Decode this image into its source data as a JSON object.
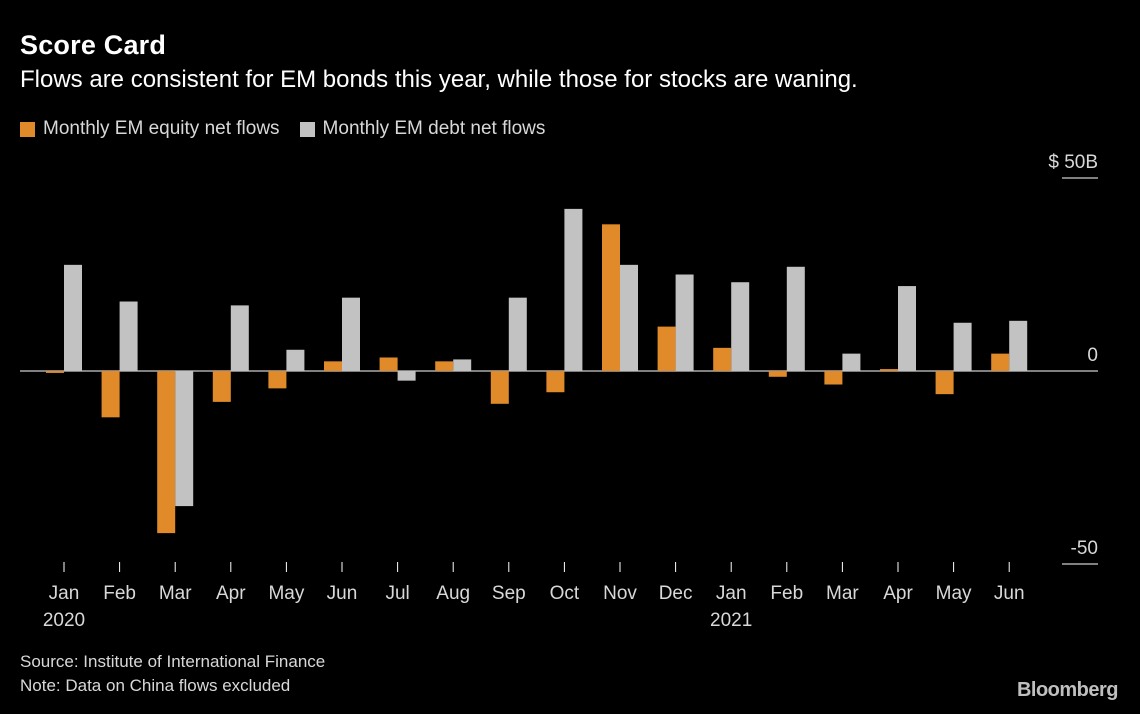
{
  "header": {
    "title": "Score Card",
    "subtitle": "Flows are consistent for EM bonds this year, while those for stocks are waning."
  },
  "legend": {
    "items": [
      {
        "label": "Monthly EM equity net flows",
        "color": "#E08A2A"
      },
      {
        "label": "Monthly EM debt net flows",
        "color": "#C2C2C2"
      }
    ]
  },
  "footer": {
    "source": "Source: Institute of International Finance",
    "note": "Note: Data on China flows excluded",
    "brand": "Bloomberg"
  },
  "chart_data": {
    "type": "bar",
    "title": "Score Card",
    "subtitle": "Flows are consistent for EM bonds this year, while those for stocks are waning.",
    "categories": [
      "Jan",
      "Feb",
      "Mar",
      "Apr",
      "May",
      "Jun",
      "Jul",
      "Aug",
      "Sep",
      "Oct",
      "Nov",
      "Dec",
      "Jan",
      "Feb",
      "Mar",
      "Apr",
      "May",
      "Jun"
    ],
    "year_labels": [
      {
        "index": 0,
        "label": "2020"
      },
      {
        "index": 12,
        "label": "2021"
      }
    ],
    "series": [
      {
        "name": "Monthly EM equity net flows",
        "color": "#E08A2A",
        "values": [
          -0.5,
          -12,
          -42,
          -8,
          -4.5,
          2.5,
          3.5,
          2.5,
          -8.5,
          -5.5,
          38,
          11.5,
          6,
          -1.5,
          -3.5,
          0.5,
          -6,
          4.5
        ]
      },
      {
        "name": "Monthly EM debt net flows",
        "color": "#C2C2C2",
        "values": [
          27.5,
          18,
          -35,
          17,
          5.5,
          19,
          -2.5,
          3,
          19,
          42,
          27.5,
          25,
          23,
          27,
          4.5,
          22,
          12.5,
          13
        ]
      }
    ],
    "y_ticks": [
      {
        "value": 50,
        "label": "$ 50B"
      },
      {
        "value": 0,
        "label": "0"
      },
      {
        "value": -50,
        "label": "-50"
      }
    ],
    "ylim": [
      -50,
      50
    ],
    "xlabel": "",
    "ylabel": "",
    "grid": false,
    "legend_position": "top-left"
  }
}
